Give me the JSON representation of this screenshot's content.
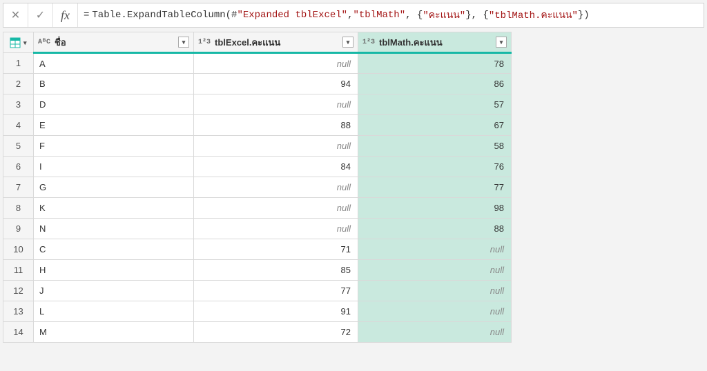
{
  "formula": {
    "prefix": "= ",
    "parts": [
      {
        "t": "kw",
        "v": "Table.ExpandTableColumn"
      },
      {
        "t": "kw",
        "v": "(#"
      },
      {
        "t": "str",
        "v": "\"Expanded tblExcel\""
      },
      {
        "t": "kw",
        "v": ", "
      },
      {
        "t": "str",
        "v": "\"tblMath\""
      },
      {
        "t": "kw",
        "v": ", {"
      },
      {
        "t": "str",
        "v": "\"คะแนน\""
      },
      {
        "t": "kw",
        "v": "}, {"
      },
      {
        "t": "str",
        "v": "\"tblMath.คะแนน\""
      },
      {
        "t": "kw",
        "v": "})"
      }
    ]
  },
  "columns": [
    {
      "type": "AᴮC",
      "label": "ชื่อ",
      "hl": false
    },
    {
      "type": "1²3",
      "label": "tblExcel.คะแนน",
      "hl": false
    },
    {
      "type": "1²3",
      "label": "tblMath.คะแนน",
      "hl": true
    }
  ],
  "rows": [
    {
      "n": "1",
      "name": "A",
      "excel": "null",
      "math": "78"
    },
    {
      "n": "2",
      "name": "B",
      "excel": "94",
      "math": "86"
    },
    {
      "n": "3",
      "name": "D",
      "excel": "null",
      "math": "57"
    },
    {
      "n": "4",
      "name": "E",
      "excel": "88",
      "math": "67"
    },
    {
      "n": "5",
      "name": "F",
      "excel": "null",
      "math": "58"
    },
    {
      "n": "6",
      "name": "I",
      "excel": "84",
      "math": "76"
    },
    {
      "n": "7",
      "name": "G",
      "excel": "null",
      "math": "77"
    },
    {
      "n": "8",
      "name": "K",
      "excel": "null",
      "math": "98"
    },
    {
      "n": "9",
      "name": "N",
      "excel": "null",
      "math": "88"
    },
    {
      "n": "10",
      "name": "C",
      "excel": "71",
      "math": "null"
    },
    {
      "n": "11",
      "name": "H",
      "excel": "85",
      "math": "null"
    },
    {
      "n": "12",
      "name": "J",
      "excel": "77",
      "math": "null"
    },
    {
      "n": "13",
      "name": "L",
      "excel": "91",
      "math": "null"
    },
    {
      "n": "14",
      "name": "M",
      "excel": "72",
      "math": "null"
    }
  ],
  "accent": "#17b8a6",
  "highlight_bg": "#c9e9de"
}
